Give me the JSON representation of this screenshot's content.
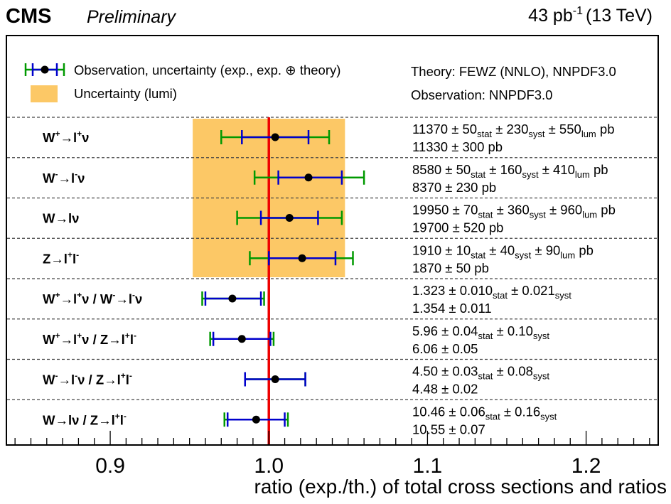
{
  "header": {
    "experiment": "CMS",
    "status": "Preliminary",
    "lumi_value": "43 pb",
    "lumi_exp": "-1",
    "energy": "(13 TeV)"
  },
  "legend": {
    "observation": "Observation, uncertainty (exp., exp. ⊕ theory)",
    "lumi_band": "Uncertainty (lumi)",
    "theory": "Theory: FEWZ (NNLO), NNPDF3.0",
    "observation_pdf": "Observation: NNPDF3.0"
  },
  "chart_data": {
    "type": "scatter",
    "xlabel": "ratio (exp./th.) of total cross sections and ratios",
    "xlim": [
      0.835,
      1.245
    ],
    "xticks": [
      0.9,
      1.0,
      1.1,
      1.2
    ],
    "xtick_labels": [
      "0.9",
      "1.0",
      "1.1",
      "1.2"
    ],
    "reference_line": 1.0,
    "lumi_band": {
      "low": 0.952,
      "high": 1.048,
      "rows": [
        0,
        3
      ]
    },
    "colors": {
      "marker": "#000000",
      "exp": "#0000cc",
      "theory": "#009900",
      "reference": "#ee0000",
      "lumi": "#fcc866"
    },
    "measurements": [
      {
        "label": [
          {
            "t": "W"
          },
          {
            "t": "+",
            "sup": true
          },
          {
            "t": "→l"
          },
          {
            "t": "+",
            "sup": true
          },
          {
            "t": "ν"
          }
        ],
        "value": 1.004,
        "exp": [
          0.983,
          1.025
        ],
        "theory": [
          0.97,
          1.038
        ],
        "values_line1": [
          {
            "t": "11370 ± 50"
          },
          {
            "t": "stat",
            "sub": true
          },
          {
            "t": " ± 230"
          },
          {
            "t": "syst",
            "sub": true
          },
          {
            "t": " ± 550"
          },
          {
            "t": "lum",
            "sub": true
          },
          {
            "t": " pb"
          }
        ],
        "values_line2": [
          {
            "t": "11330 ± 300 pb"
          }
        ]
      },
      {
        "label": [
          {
            "t": "W"
          },
          {
            "t": "-",
            "sup": true
          },
          {
            "t": "→l"
          },
          {
            "t": "-",
            "sup": true
          },
          {
            "t": "ν"
          }
        ],
        "value": 1.025,
        "exp": [
          1.006,
          1.046
        ],
        "theory": [
          0.991,
          1.06
        ],
        "values_line1": [
          {
            "t": "8580 ± 50"
          },
          {
            "t": "stat",
            "sub": true
          },
          {
            "t": " ± 160"
          },
          {
            "t": "syst",
            "sub": true
          },
          {
            "t": " ± 410"
          },
          {
            "t": "lum",
            "sub": true
          },
          {
            "t": " pb"
          }
        ],
        "values_line2": [
          {
            "t": "8370 ± 230 pb"
          }
        ]
      },
      {
        "label": [
          {
            "t": "W→lν"
          }
        ],
        "value": 1.013,
        "exp": [
          0.995,
          1.031
        ],
        "theory": [
          0.98,
          1.046
        ],
        "values_line1": [
          {
            "t": "19950 ± 70"
          },
          {
            "t": "stat",
            "sub": true
          },
          {
            "t": " ± 360"
          },
          {
            "t": "syst",
            "sub": true
          },
          {
            "t": " ± 960"
          },
          {
            "t": "lum",
            "sub": true
          },
          {
            "t": " pb"
          }
        ],
        "values_line2": [
          {
            "t": "19700 ± 520 pb"
          }
        ]
      },
      {
        "label": [
          {
            "t": "Z→l"
          },
          {
            "t": "+",
            "sup": true
          },
          {
            "t": "l"
          },
          {
            "t": "-",
            "sup": true
          }
        ],
        "value": 1.021,
        "exp": [
          1.0,
          1.042
        ],
        "theory": [
          0.988,
          1.053
        ],
        "values_line1": [
          {
            "t": "1910 ± 10"
          },
          {
            "t": "stat",
            "sub": true
          },
          {
            "t": " ± 40"
          },
          {
            "t": "syst",
            "sub": true
          },
          {
            "t": " ± 90"
          },
          {
            "t": "lum",
            "sub": true
          },
          {
            "t": " pb"
          }
        ],
        "values_line2": [
          {
            "t": "1870 ± 50 pb"
          }
        ]
      },
      {
        "label": [
          {
            "t": "W"
          },
          {
            "t": "+",
            "sup": true
          },
          {
            "t": "→l"
          },
          {
            "t": "+",
            "sup": true
          },
          {
            "t": "ν / W"
          },
          {
            "t": "-",
            "sup": true
          },
          {
            "t": "→l"
          },
          {
            "t": "-",
            "sup": true
          },
          {
            "t": "ν"
          }
        ],
        "value": 0.977,
        "exp": [
          0.96,
          0.995
        ],
        "theory": [
          0.958,
          0.997
        ],
        "values_line1": [
          {
            "t": "1.323 ± 0.010"
          },
          {
            "t": "stat",
            "sub": true
          },
          {
            "t": " ± 0.021"
          },
          {
            "t": "syst",
            "sub": true
          }
        ],
        "values_line2": [
          {
            "t": "1.354 ± 0.011"
          }
        ]
      },
      {
        "label": [
          {
            "t": "W"
          },
          {
            "t": "+",
            "sup": true
          },
          {
            "t": "→l"
          },
          {
            "t": "+",
            "sup": true
          },
          {
            "t": "ν / Z→l"
          },
          {
            "t": "+",
            "sup": true
          },
          {
            "t": "l"
          },
          {
            "t": "-",
            "sup": true
          }
        ],
        "value": 0.983,
        "exp": [
          0.965,
          1.001
        ],
        "theory": [
          0.963,
          1.003
        ],
        "values_line1": [
          {
            "t": "5.96 ± 0.04"
          },
          {
            "t": "stat",
            "sub": true
          },
          {
            "t": " ± 0.10"
          },
          {
            "t": "syst",
            "sub": true
          }
        ],
        "values_line2": [
          {
            "t": "6.06 ± 0.05"
          }
        ]
      },
      {
        "label": [
          {
            "t": "W"
          },
          {
            "t": "-",
            "sup": true
          },
          {
            "t": "→l"
          },
          {
            "t": "-",
            "sup": true
          },
          {
            "t": "ν / Z→l"
          },
          {
            "t": "+",
            "sup": true
          },
          {
            "t": "l"
          },
          {
            "t": "-",
            "sup": true
          }
        ],
        "value": 1.004,
        "exp": [
          0.985,
          1.023
        ],
        "theory": [
          0.985,
          1.023
        ],
        "values_line1": [
          {
            "t": "4.50 ± 0.03"
          },
          {
            "t": "stat",
            "sub": true
          },
          {
            "t": " ± 0.08"
          },
          {
            "t": "syst",
            "sub": true
          }
        ],
        "values_line2": [
          {
            "t": "4.48 ± 0.02"
          }
        ]
      },
      {
        "label": [
          {
            "t": "W→lν / Z→l"
          },
          {
            "t": "+",
            "sup": true
          },
          {
            "t": "l"
          },
          {
            "t": "-",
            "sup": true
          }
        ],
        "value": 0.992,
        "exp": [
          0.974,
          1.01
        ],
        "theory": [
          0.972,
          1.012
        ],
        "values_line1": [
          {
            "t": "10.46 ± 0.06"
          },
          {
            "t": "stat",
            "sub": true
          },
          {
            "t": " ± 0.16"
          },
          {
            "t": "syst",
            "sub": true
          }
        ],
        "values_line2": [
          {
            "t": "10.55 ± 0.07"
          }
        ]
      }
    ]
  }
}
